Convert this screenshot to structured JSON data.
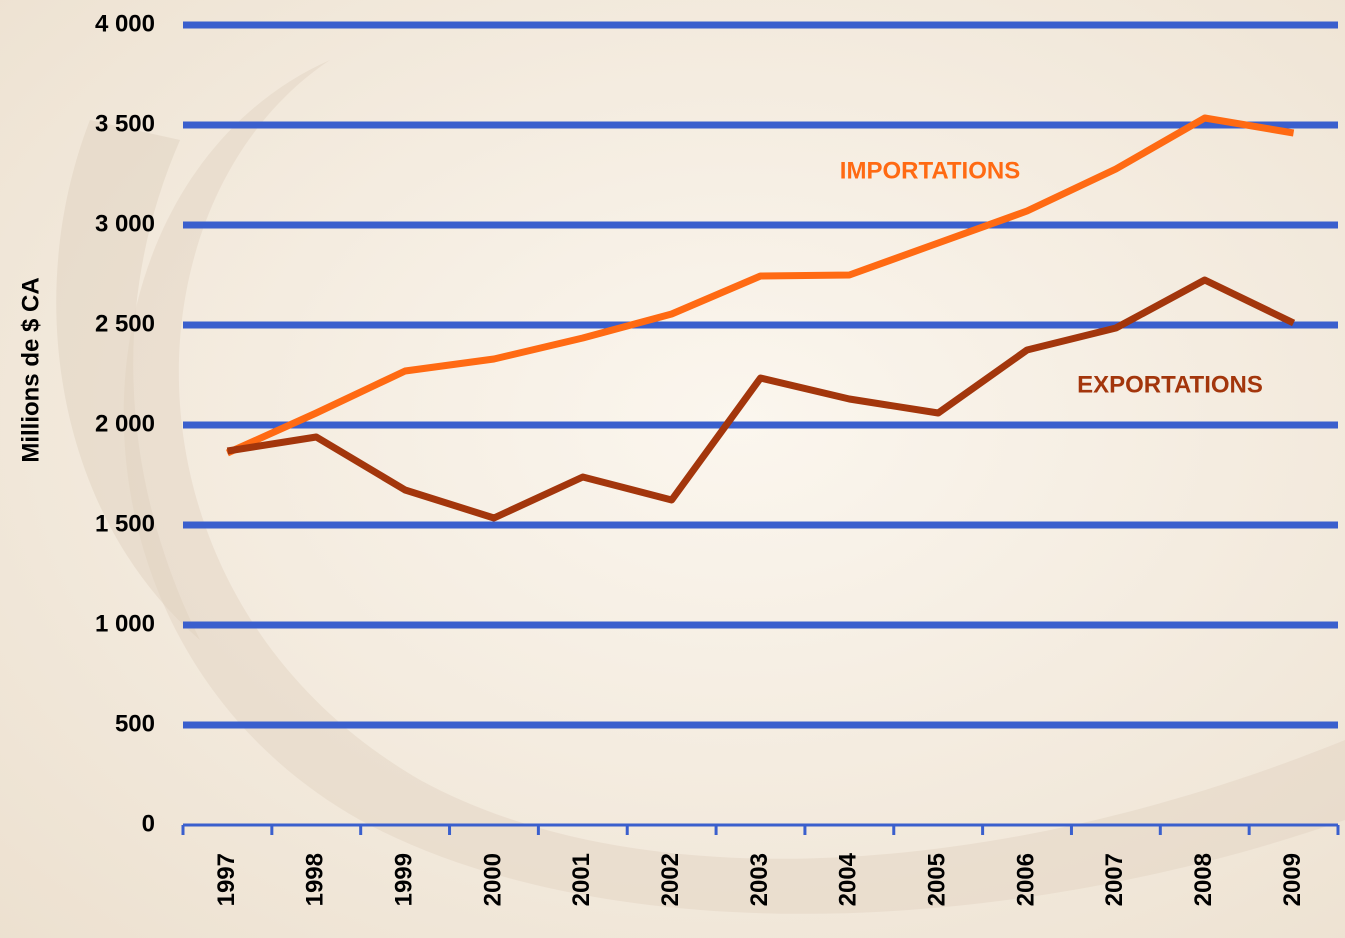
{
  "chart_data": {
    "type": "line",
    "y_axis_label": "Millions de $ CA",
    "categories": [
      "1997",
      "1998",
      "1999",
      "2000",
      "2001",
      "2002",
      "2003",
      "2004",
      "2005",
      "2006",
      "2007",
      "2008",
      "2009"
    ],
    "series": [
      {
        "name": "IMPORTATIONS",
        "color": "#ff6a13",
        "values": [
          1860,
          2060,
          2270,
          2330,
          2435,
          2555,
          2745,
          2750,
          2910,
          3070,
          3280,
          3535,
          3460
        ]
      },
      {
        "name": "EXPORTATIONS",
        "color": "#a3360c",
        "values": [
          1870,
          1940,
          1675,
          1535,
          1740,
          1625,
          2235,
          2130,
          2060,
          2375,
          2485,
          2725,
          2510
        ]
      }
    ],
    "ylim": [
      0,
      4000
    ],
    "yticks": [
      0,
      500,
      {
        "value": 1000,
        "label": "1 000"
      },
      {
        "value": 1500,
        "label": "1 500"
      },
      {
        "value": 2000,
        "label": "2 000"
      },
      {
        "value": 2500,
        "label": "2 500"
      },
      {
        "value": 3000,
        "label": "3 000"
      },
      {
        "value": 3500,
        "label": "3 500"
      },
      {
        "value": 4000,
        "label": "4 000"
      }
    ],
    "grid": true,
    "grid_color": "#3a5fcd"
  }
}
